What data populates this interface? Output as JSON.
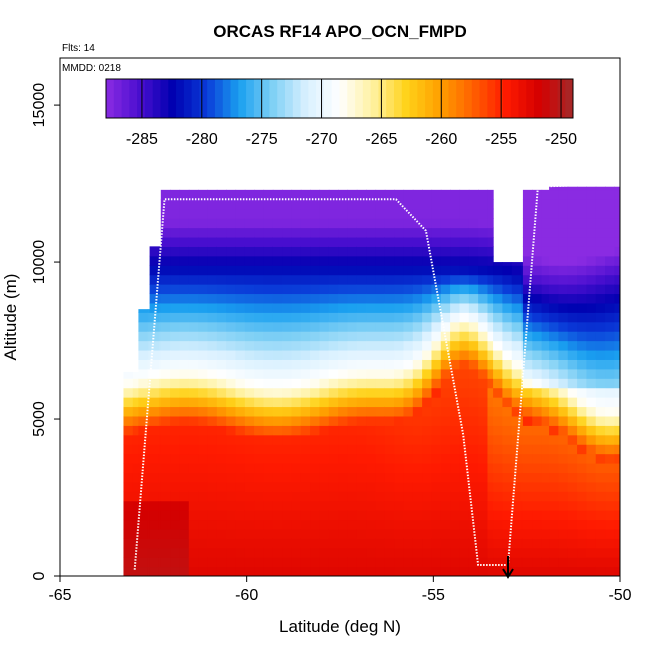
{
  "chart_data": {
    "type": "heatmap",
    "title": "ORCAS RF14 APO_OCN_FMPD",
    "annotations": [
      "Flts: 14",
      "MMDD: 0218"
    ],
    "xlabel": "Latitude (deg N)",
    "ylabel": "Altitude (m)",
    "xlim": [
      -65,
      -50
    ],
    "ylim": [
      0,
      16500
    ],
    "x_ticks": [
      "-65",
      "-60",
      "-55",
      "-50"
    ],
    "y_ticks": [
      "0",
      "5000",
      "10000",
      "15000"
    ],
    "colorbar": {
      "range": [
        -288,
        -249
      ],
      "tick_labels": [
        "-285",
        "-280",
        "-275",
        "-270",
        "-265",
        "-260",
        "-255",
        "-250"
      ],
      "colors": [
        "#8a2be2",
        "#4b0fd0",
        "#0000b0",
        "#0a3ad8",
        "#1aa0f0",
        "#7fd0f5",
        "#d8f0ff",
        "#ffffff",
        "#fff2a0",
        "#ffd21a",
        "#ffa000",
        "#ff6000",
        "#ff1a00",
        "#d40000",
        "#a52a2a"
      ]
    },
    "grid": false,
    "flight_track": [
      [
        -63.0,
        200
      ],
      [
        -62.2,
        12000
      ],
      [
        -56.0,
        12000
      ],
      [
        -55.2,
        11000
      ],
      [
        -54.2,
        4500
      ],
      [
        -53.8,
        350
      ],
      [
        -53.0,
        350
      ],
      [
        -52.2,
        12400
      ],
      [
        -50.0,
        12500
      ]
    ],
    "curtain_segments": [
      {
        "x0": -63.3,
        "x1": -62.9,
        "top": 6500
      },
      {
        "x0": -62.9,
        "x1": -62.6,
        "top": 8500
      },
      {
        "x0": -62.6,
        "x1": -62.3,
        "top": 10500
      },
      {
        "x0": -62.3,
        "x1": -57.3,
        "top": 12300
      },
      {
        "x0": -57.3,
        "x1": -53.4,
        "top": 12300
      },
      {
        "x0": -53.4,
        "x1": -52.6,
        "top": 10000
      },
      {
        "x0": -52.6,
        "x1": -51.9,
        "top": 12300
      },
      {
        "x0": -51.9,
        "x1": -50.0,
        "top": 12400
      }
    ],
    "marker": {
      "lat": -53.0,
      "label": "arrow"
    }
  }
}
